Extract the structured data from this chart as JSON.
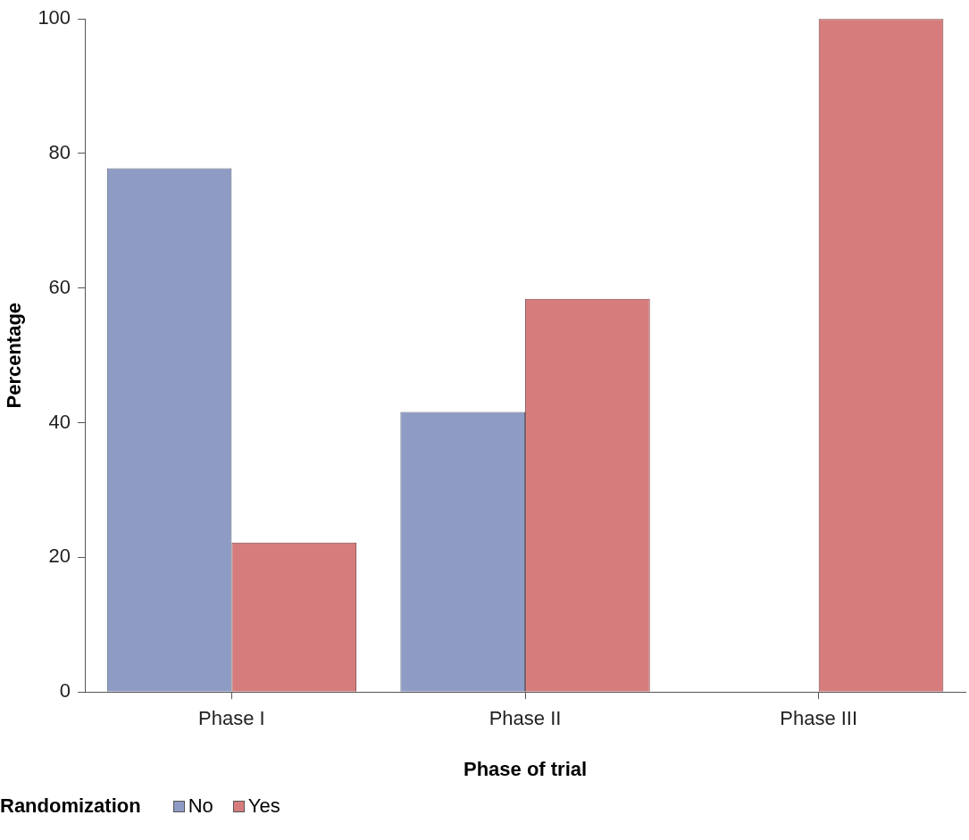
{
  "chart_data": {
    "type": "bar",
    "xlabel": "Phase of trial",
    "ylabel": "Percentage",
    "legend_title": "Randomization",
    "categories": [
      "Phase I",
      "Phase II",
      "Phase III"
    ],
    "series": [
      {
        "name": "No",
        "color": "#8e9bc4",
        "values": [
          77.8,
          41.6,
          0
        ]
      },
      {
        "name": "Yes",
        "color": "#d67c7c",
        "values": [
          22.2,
          58.4,
          100
        ]
      }
    ],
    "ylim": [
      0,
      100
    ],
    "yticks": [
      0,
      20,
      40,
      60,
      80,
      100
    ],
    "grid": false,
    "legend": "bottom left"
  }
}
